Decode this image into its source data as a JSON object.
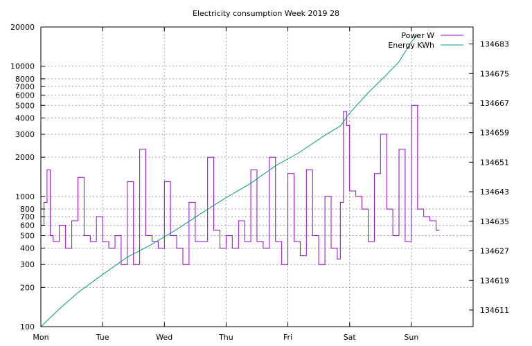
{
  "chart_data": {
    "type": "line",
    "title": "Electricity consumption Week 2019 28",
    "xlabel": "",
    "ylabel": "",
    "x_ticks": [
      "Mon",
      "Tue",
      "Wed",
      "Thu",
      "Fri",
      "Sat",
      "Sun"
    ],
    "xlim": [
      0,
      7
    ],
    "y_scale": "log",
    "ylim": [
      100,
      20000
    ],
    "y_ticks": [
      100,
      200,
      300,
      400,
      500,
      600,
      700,
      800,
      1000,
      2000,
      3000,
      4000,
      5000,
      6000,
      7000,
      8000,
      10000,
      20000
    ],
    "y2_scale": "linear",
    "y2lim": [
      134606.5,
      134687.6
    ],
    "y2_ticks": [
      134611,
      134619,
      134627,
      134635,
      134643,
      134651,
      134659,
      134667,
      134675,
      134683
    ],
    "grid": true,
    "legend": "top-right",
    "colors": {
      "power": "#9400d3",
      "energy": "#009e73",
      "grid": "#a0a0a0"
    },
    "series": [
      {
        "name": "Power W",
        "axis": "y",
        "style": "steps",
        "x": [
          0.0,
          0.05,
          0.1,
          0.15,
          0.2,
          0.3,
          0.4,
          0.5,
          0.6,
          0.7,
          0.8,
          0.9,
          1.0,
          1.1,
          1.2,
          1.3,
          1.4,
          1.5,
          1.6,
          1.7,
          1.8,
          1.9,
          2.0,
          2.1,
          2.2,
          2.3,
          2.4,
          2.5,
          2.6,
          2.7,
          2.8,
          2.9,
          3.0,
          3.1,
          3.2,
          3.3,
          3.4,
          3.5,
          3.6,
          3.7,
          3.8,
          3.9,
          4.0,
          4.1,
          4.2,
          4.3,
          4.4,
          4.5,
          4.6,
          4.7,
          4.8,
          4.85,
          4.9,
          4.95,
          5.0,
          5.1,
          5.2,
          5.3,
          5.4,
          5.5,
          5.6,
          5.7,
          5.8,
          5.9,
          6.0,
          6.1,
          6.2,
          6.3,
          6.4
        ],
        "values": [
          600,
          900,
          1600,
          500,
          450,
          600,
          400,
          650,
          1400,
          500,
          450,
          700,
          450,
          400,
          500,
          300,
          1300,
          300,
          2300,
          500,
          450,
          400,
          1300,
          500,
          400,
          300,
          900,
          450,
          450,
          2000,
          550,
          400,
          500,
          400,
          650,
          450,
          1600,
          450,
          400,
          2000,
          450,
          300,
          1500,
          450,
          350,
          1600,
          500,
          300,
          1000,
          400,
          330,
          900,
          4500,
          3500,
          1100,
          1000,
          800,
          450,
          1500,
          3000,
          800,
          500,
          2300,
          450,
          5000,
          800,
          700,
          650,
          550
        ]
      },
      {
        "name": "Energy KWh",
        "axis": "y2",
        "style": "line",
        "x": [
          0.0,
          0.3,
          0.6,
          1.0,
          1.4,
          1.8,
          2.2,
          2.6,
          3.0,
          3.4,
          3.8,
          4.2,
          4.6,
          4.85,
          5.0,
          5.3,
          5.6,
          5.8,
          6.0,
          6.1
        ],
        "values": [
          134606.5,
          134611.3,
          134615.7,
          134620.6,
          134625.3,
          134628.8,
          134632.8,
          134637.2,
          134641.4,
          134645.3,
          134650.0,
          134653.8,
          134658.3,
          134660.8,
          134664.3,
          134669.8,
          134674.7,
          134678.2,
          134683.6,
          134685.5
        ]
      }
    ]
  }
}
